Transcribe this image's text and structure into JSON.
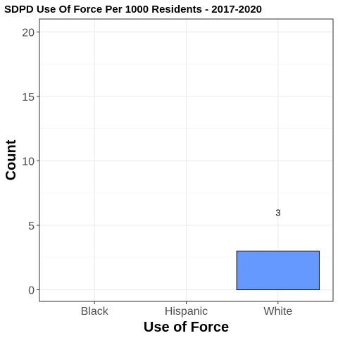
{
  "chart_data": {
    "type": "bar",
    "title": "SDPD Use Of Force Per 1000 Residents - 2017-2020",
    "xlabel": "Use of Force",
    "ylabel": "Count",
    "categories": [
      "Black",
      "Hispanic",
      "White"
    ],
    "values": [
      null,
      null,
      3
    ],
    "data_labels": [
      "",
      "",
      "3"
    ],
    "ylim": [
      -0.9,
      21
    ],
    "yticks": [
      0,
      5,
      10,
      15,
      20
    ],
    "grid": true,
    "legend": "none",
    "colors": {
      "bar_fill": "#6699ff",
      "bar_stroke": "#000000",
      "panel_border": "#333333"
    }
  }
}
